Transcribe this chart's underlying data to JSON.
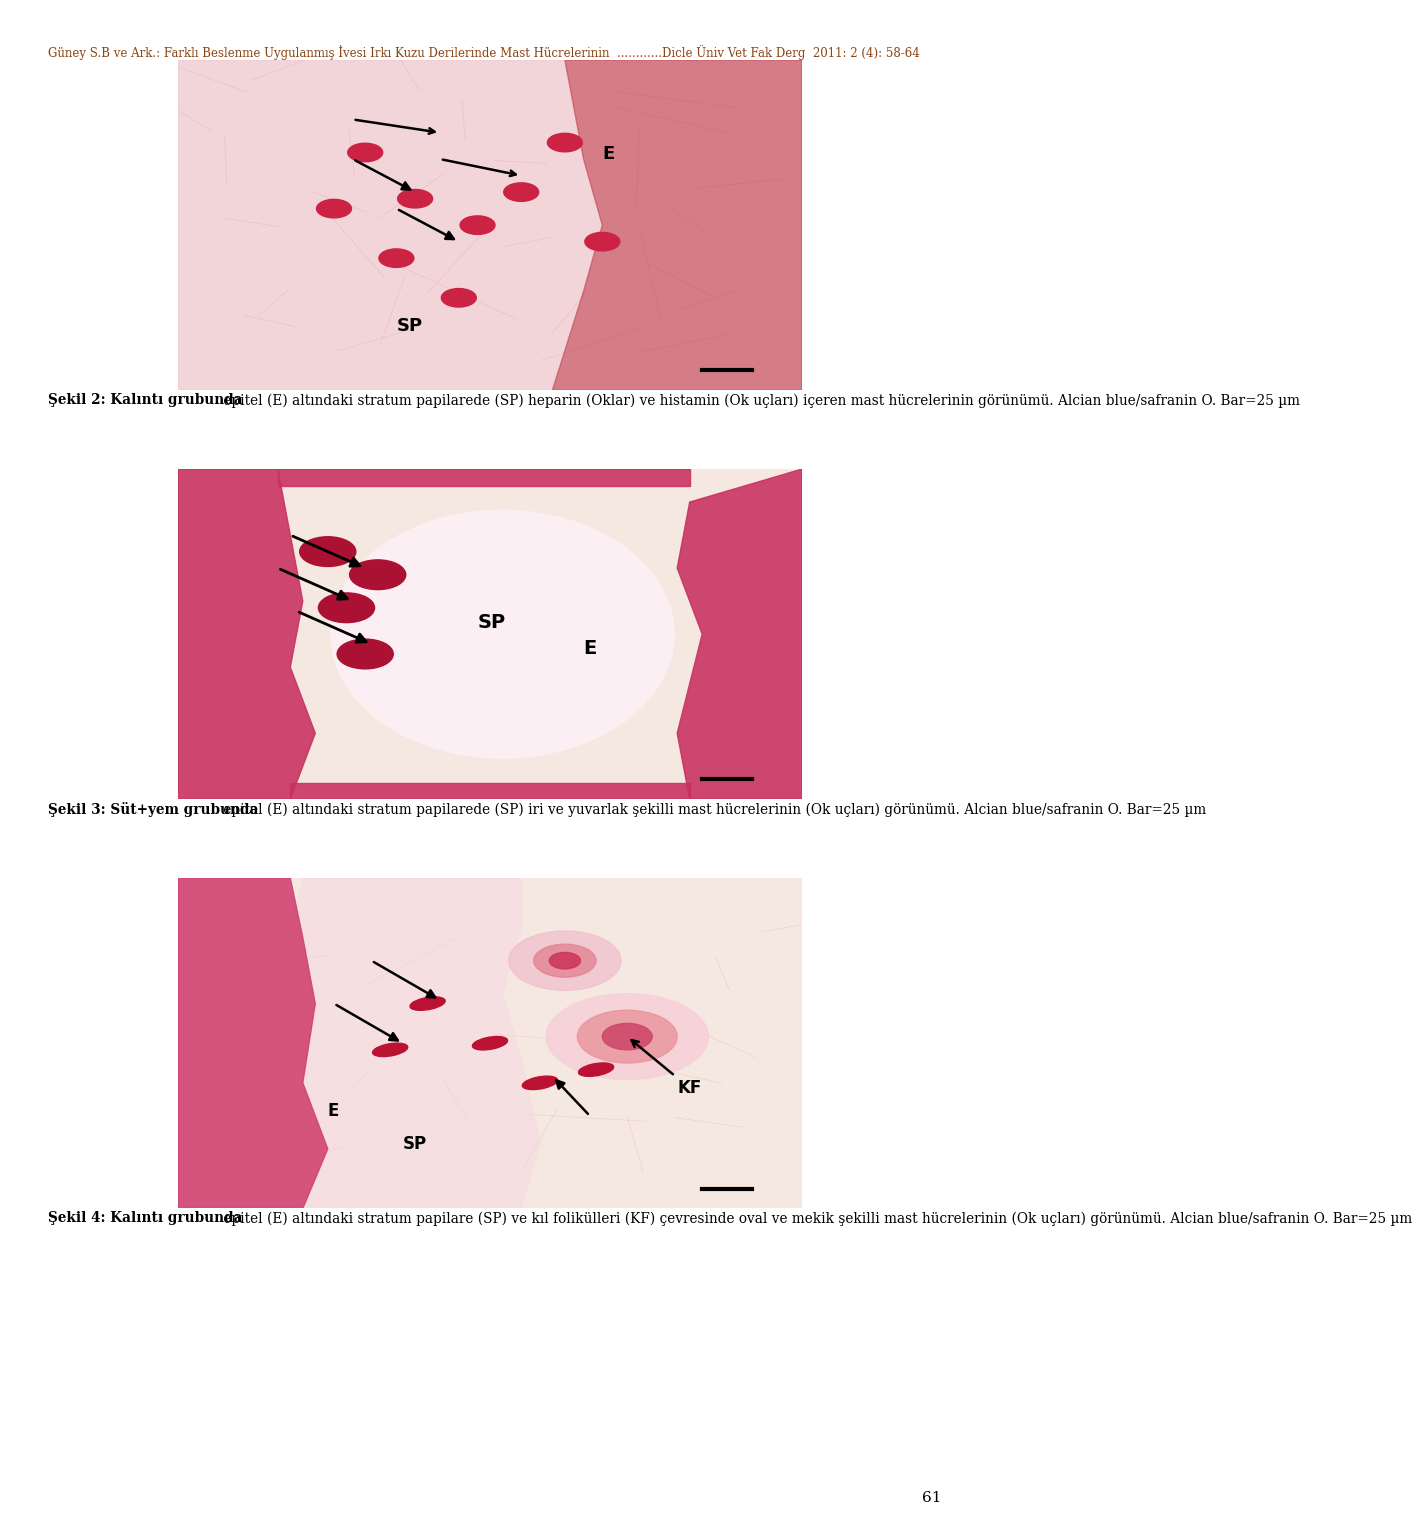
{
  "page_width": 9.6,
  "page_height": 15.15,
  "bg_color": "#ffffff",
  "header_text": "Güney S.B ve Ark.: Farklı Beslenme Uygulanmış İvesi Irkı Kuzu Derilerinde Mast Hücrelerinin  ............Dicle Üniv Vet Fak Derg  2011: 2 (4): 58-64",
  "header_color": "#8B4513",
  "header_fontsize": 8.5,
  "footer_text": "61",
  "footer_fontsize": 11,
  "fig2_caption_bold": "Şekil 2: ",
  "fig2_caption_bold_part": "Kalıntı grubunda",
  "fig2_caption": " epitel (E) altındaki stratum papilarede (SP) heparin (Oklar) ve histamin (Ok uçları) içeren mast hücrelerinin görünümü. Alcian blue/safranin O. Bar=25 µm",
  "fig3_caption_bold": "Şekil 3: ",
  "fig3_caption_bold_part": "Süt+yem grubunda",
  "fig3_caption": " epitel (E) altındaki stratum papilarede (SP) iri ve yuvarlak şekilli mast hücrelerinin (Ok uçları) görünümü. Alcian blue/safranin O. Bar=25 µm",
  "fig4_caption_bold": "Şekil 4: ",
  "fig4_caption_bold_part": "Kalıntı grubunda",
  "fig4_caption": " epitel (E) altındaki stratum papilare (SP) ve kıl folikülleri (KF) çevresinde oval ve mekik şekilli mast hücrelerinin (Ok uçları) görünümü. Alcian blue/safranin O. Bar=25 µm",
  "text_color": "#000000",
  "caption_fontsize": 9.8
}
